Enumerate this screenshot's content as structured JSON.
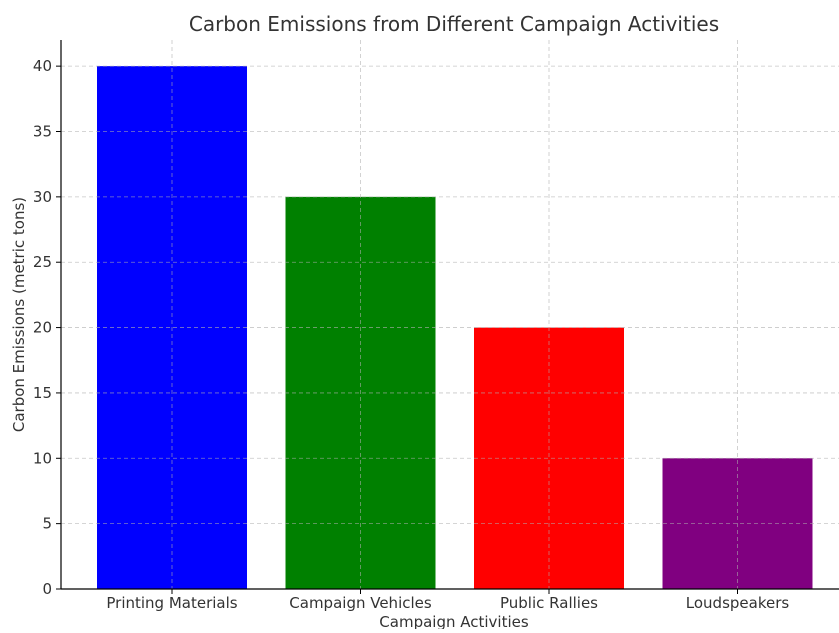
{
  "chart_data": {
    "type": "bar",
    "title": "Carbon Emissions from Different Campaign Activities",
    "xlabel": "Campaign Activities",
    "ylabel": "Carbon Emissions (metric tons)",
    "categories": [
      "Printing Materials",
      "Campaign Vehicles",
      "Public Rallies",
      "Loudspeakers"
    ],
    "values": [
      40,
      30,
      20,
      10
    ],
    "colors": [
      "#0000ff",
      "#008000",
      "#ff0000",
      "#800080"
    ],
    "ylim": [
      0,
      42
    ],
    "yticks": [
      0,
      5,
      10,
      15,
      20,
      25,
      30,
      35,
      40
    ],
    "grid": true
  }
}
